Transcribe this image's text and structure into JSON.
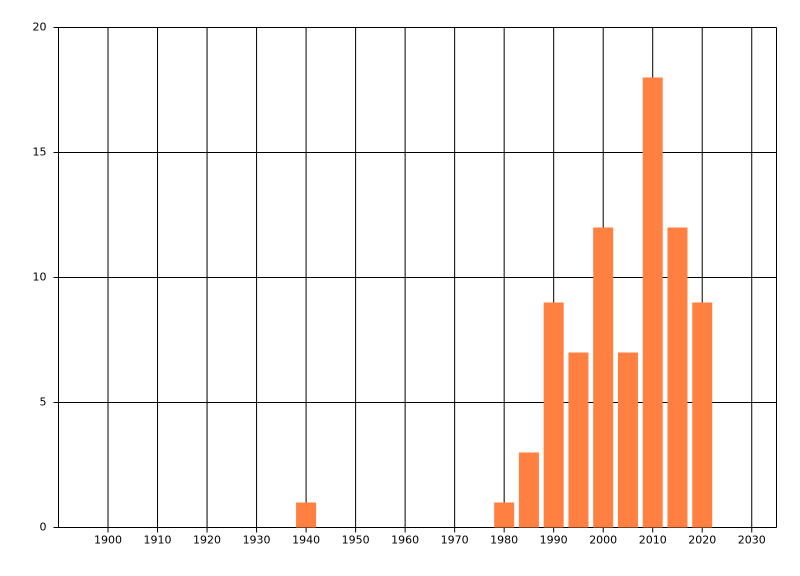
{
  "chart_data": {
    "type": "bar",
    "x": [
      1940,
      1980,
      1985,
      1990,
      1995,
      2000,
      2005,
      2010,
      2015,
      2020
    ],
    "values": [
      1,
      1,
      3,
      9,
      7,
      12,
      7,
      18,
      12,
      9
    ],
    "color": "#ff8040",
    "xlim": [
      1890,
      2035
    ],
    "xticks": [
      1900,
      1910,
      1920,
      1930,
      1940,
      1950,
      1960,
      1970,
      1980,
      1990,
      2000,
      2010,
      2020,
      2030
    ],
    "ylim": [
      0,
      20
    ],
    "yticks": [
      0,
      5,
      10,
      15,
      20
    ],
    "grid": true
  }
}
